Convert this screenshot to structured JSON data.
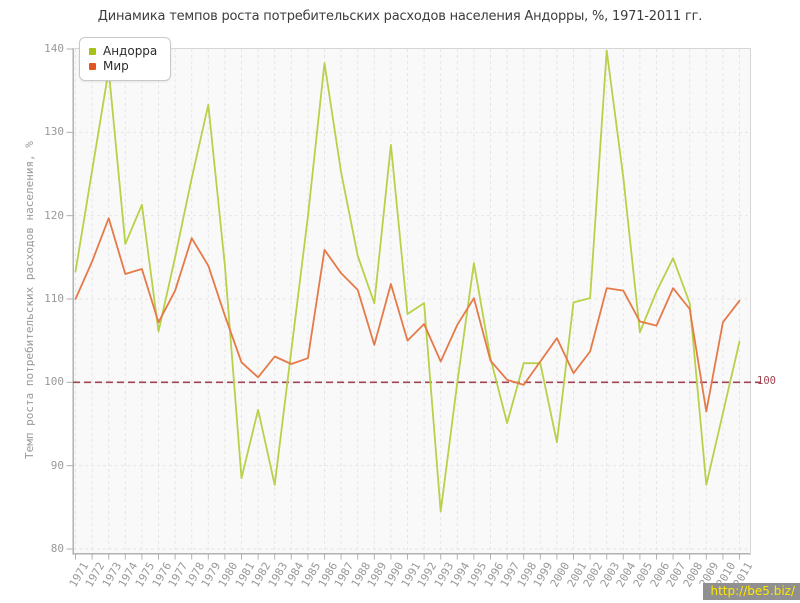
{
  "title": "Динамика темпов роста потребительских расходов населения Андорры, %, 1971-2011 гг.",
  "legend": [
    {
      "label": "Андорра",
      "color": "#a6c219"
    },
    {
      "label": "Мир",
      "color": "#e2571f"
    }
  ],
  "watermark": "http://be5.biz/",
  "chart_data": {
    "type": "line",
    "title": "Динамика темпов роста потребительских расходов населения Андорры, %, 1971-2011 гг.",
    "xlabel": "",
    "ylabel": "Темп роста потребительских расходов населения, %",
    "ylim": [
      80,
      140
    ],
    "yticks": [
      80,
      90,
      100,
      110,
      120,
      130,
      140
    ],
    "grid": true,
    "legend_position": "top-left",
    "x": [
      "1971",
      "1972",
      "1973",
      "1974",
      "1975",
      "1976",
      "1977",
      "1978",
      "1979",
      "1980",
      "1981",
      "1982",
      "1983",
      "1984",
      "1985",
      "1986",
      "1987",
      "1988",
      "1989",
      "1990",
      "1991",
      "1992",
      "1993",
      "1994",
      "1995",
      "1996",
      "1997",
      "1998",
      "1999",
      "2000",
      "2001",
      "2002",
      "2003",
      "2004",
      "2005",
      "2006",
      "2007",
      "2008",
      "2009",
      "2010",
      "2011"
    ],
    "series": [
      {
        "name": "Андорра",
        "color": "#b7d149",
        "values": [
          113.3,
          125.4,
          137.5,
          116.6,
          121.3,
          106.1,
          115.0,
          124.5,
          133.3,
          114.0,
          88.5,
          96.7,
          87.7,
          103.8,
          119.9,
          138.3,
          125.2,
          115.2,
          109.5,
          128.5,
          108.2,
          109.5,
          84.5,
          100.0,
          114.3,
          102.9,
          95.1,
          102.3,
          102.3,
          92.8,
          109.6,
          110.1,
          139.8,
          124.6,
          106.0,
          110.9,
          114.9,
          109.5,
          87.7,
          96.3,
          104.9
        ]
      },
      {
        "name": "Мир",
        "color": "#e57a49",
        "values": [
          110.0,
          114.5,
          119.7,
          113.0,
          113.6,
          107.2,
          111.0,
          117.3,
          114.0,
          108.0,
          102.4,
          100.6,
          103.1,
          102.2,
          102.9,
          115.9,
          113.1,
          111.1,
          104.5,
          111.8,
          105.0,
          107.0,
          102.5,
          106.9,
          110.1,
          102.6,
          100.3,
          99.7,
          102.5,
          105.3,
          101.1,
          103.7,
          111.3,
          111.0,
          107.3,
          106.8,
          111.3,
          108.8,
          96.5,
          107.2,
          109.8
        ]
      }
    ],
    "baseline": {
      "value": 100,
      "label": "100",
      "color": "#a04454"
    }
  }
}
